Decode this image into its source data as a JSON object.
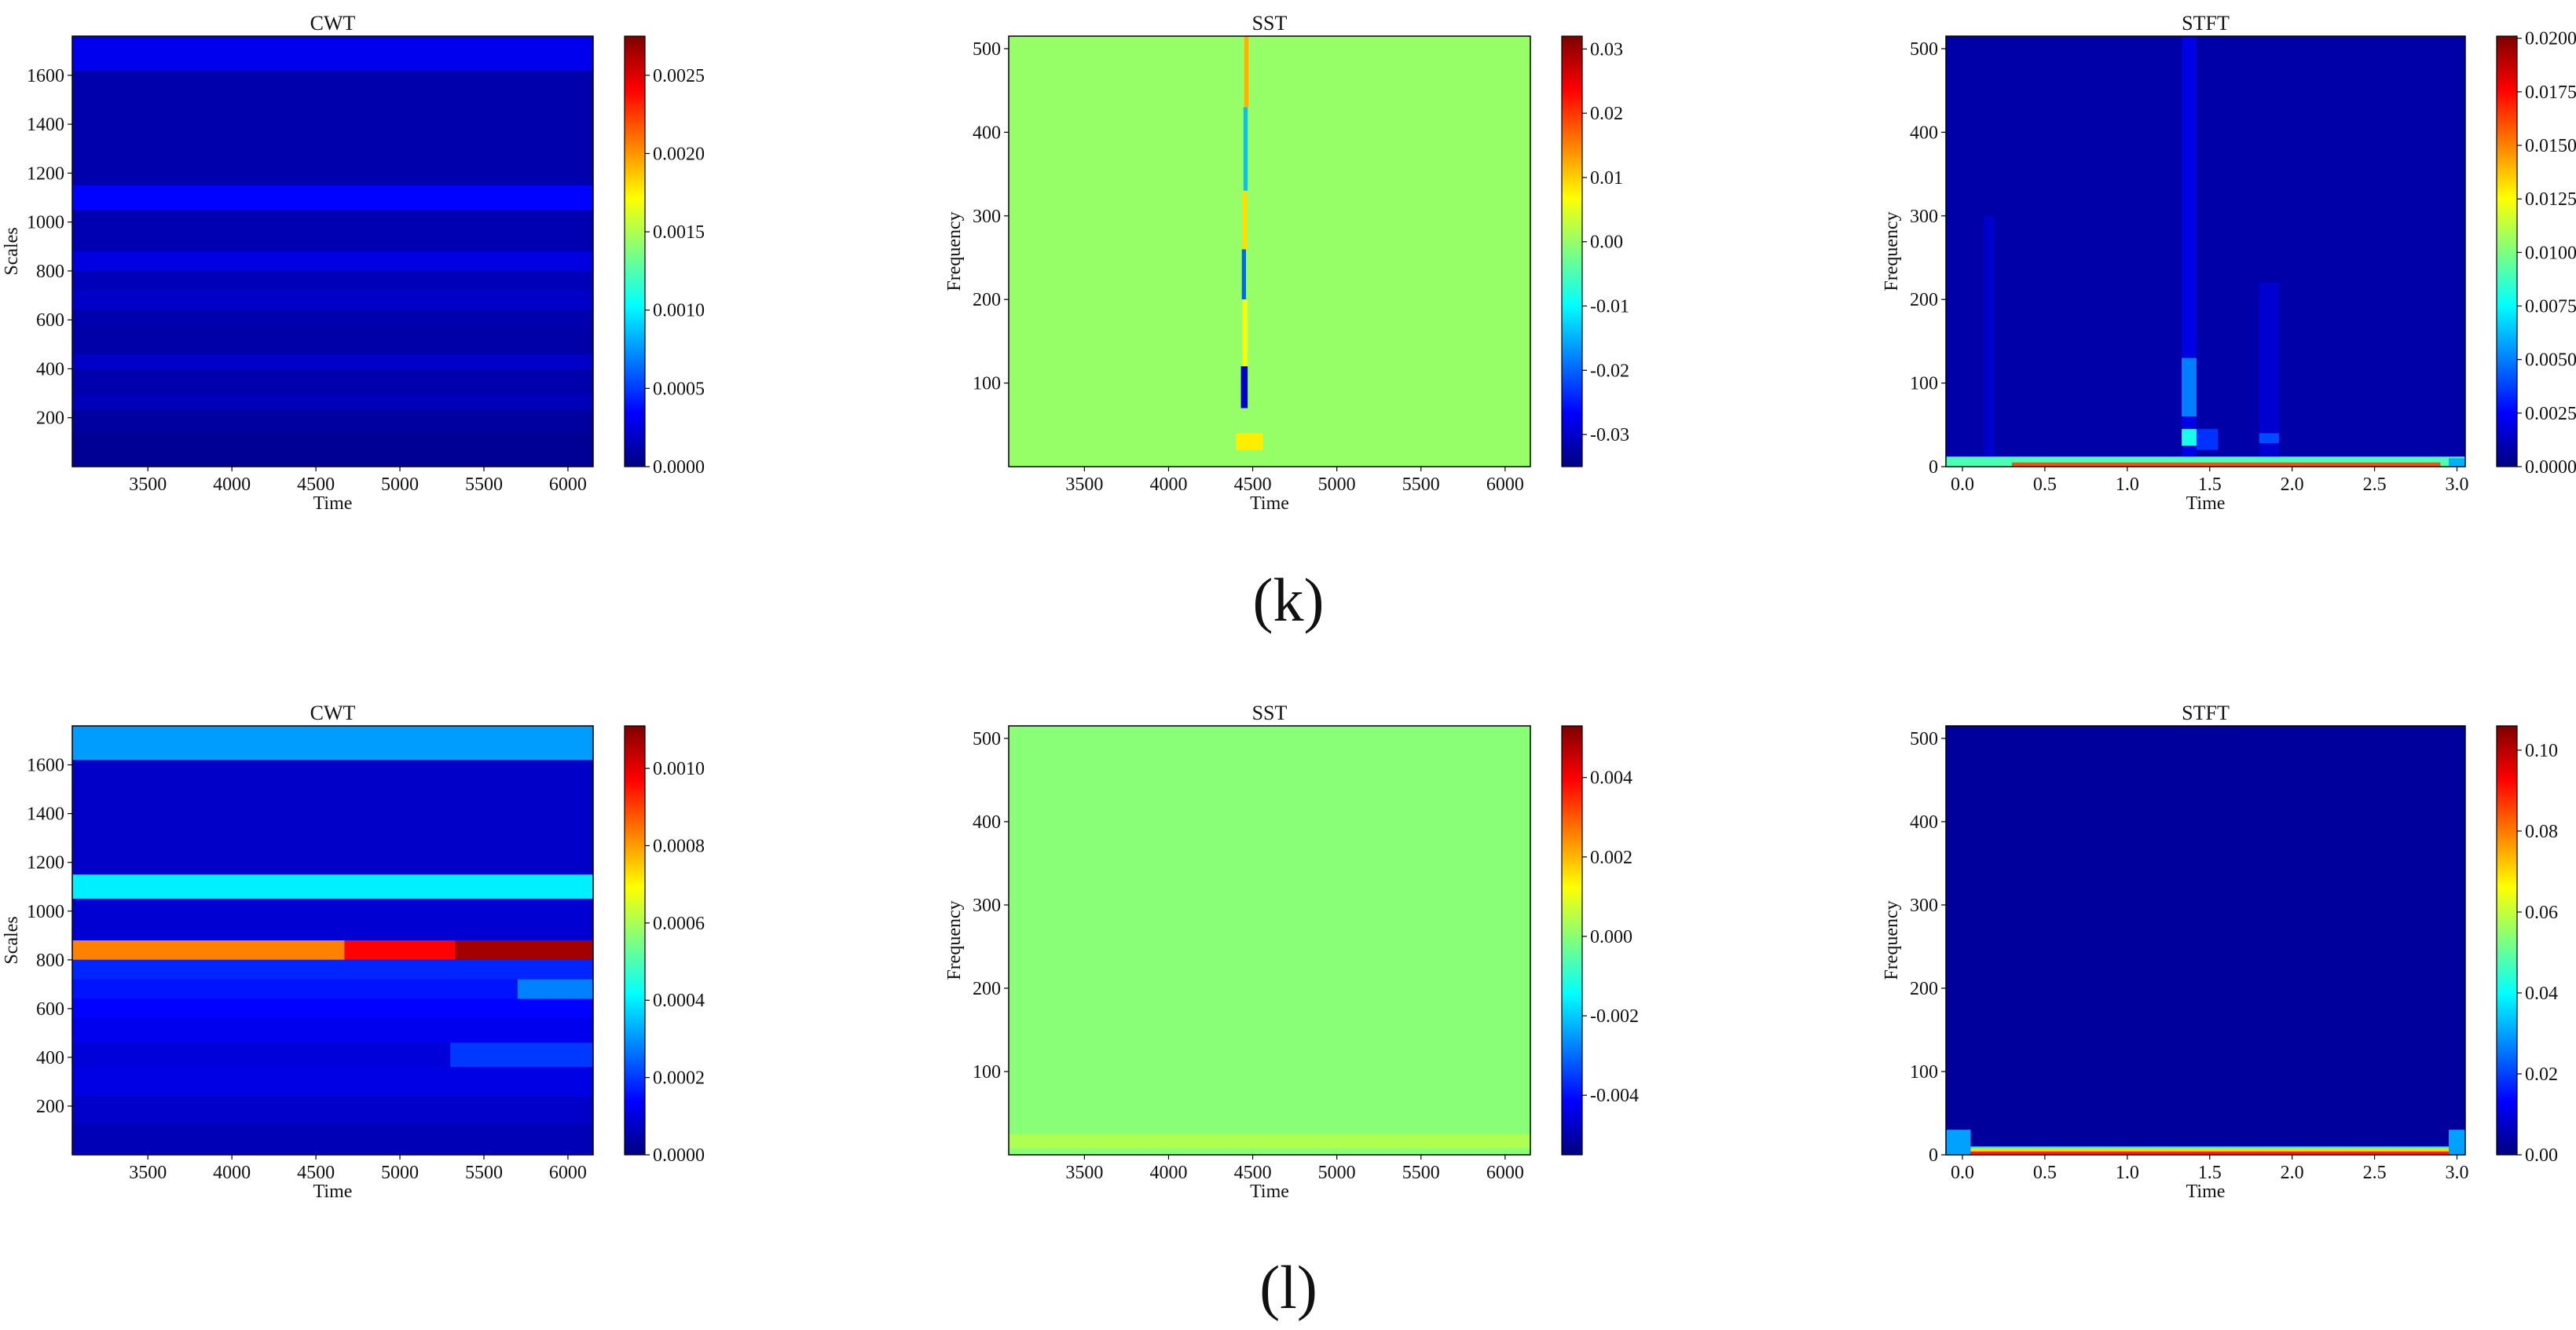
{
  "figure": {
    "rows": [
      {
        "label": "(k)",
        "panels": [
          {
            "title": "CWT",
            "xlabel": "Time",
            "ylabel": "Scales"
          },
          {
            "title": "SST",
            "xlabel": "Time",
            "ylabel": "Frequency"
          },
          {
            "title": "STFT",
            "xlabel": "Time",
            "ylabel": "Frequency"
          }
        ]
      },
      {
        "label": "(l)",
        "panels": [
          {
            "title": "CWT",
            "xlabel": "Time",
            "ylabel": "Scales"
          },
          {
            "title": "SST",
            "xlabel": "Time",
            "ylabel": "Frequency"
          },
          {
            "title": "STFT",
            "xlabel": "Time",
            "ylabel": "Frequency"
          }
        ]
      }
    ],
    "colormap": [
      "#00007f",
      "#0000ff",
      "#007fff",
      "#00ffff",
      "#7fff7f",
      "#ffff00",
      "#ff7f00",
      "#ff0000",
      "#7f0000"
    ]
  },
  "chart_data": [
    {
      "type": "heatmap",
      "title": "CWT",
      "xlabel": "Time",
      "ylabel": "Scales",
      "xlim": [
        3050,
        6150
      ],
      "ylim": [
        0,
        1760
      ],
      "xticks": [
        "3500",
        "4000",
        "4500",
        "5000",
        "5500",
        "6000"
      ],
      "xtick_values": [
        3500,
        4000,
        4500,
        5000,
        5500,
        6000
      ],
      "yticks": [
        "200",
        "400",
        "600",
        "800",
        "1000",
        "1200",
        "1400",
        "1600"
      ],
      "ytick_values": [
        200,
        400,
        600,
        800,
        1000,
        1200,
        1400,
        1600
      ],
      "colorbar": {
        "min": 0,
        "max": 0.00275,
        "ticks": [
          "0.0000",
          "0.0005",
          "0.0010",
          "0.0015",
          "0.0020",
          "0.0025"
        ],
        "tick_values": [
          0,
          0.0005,
          0.001,
          0.0015,
          0.002,
          0.0025
        ]
      },
      "bands": [
        {
          "y": [
            1620,
            1760
          ],
          "x": [
            3050,
            6150
          ],
          "value": 0.0003
        },
        {
          "y": [
            1150,
            1620
          ],
          "x": [
            3050,
            6150
          ],
          "value": 0.00012
        },
        {
          "y": [
            1050,
            1150
          ],
          "x": [
            3050,
            6150
          ],
          "value": 0.00035
        },
        {
          "y": [
            880,
            1050
          ],
          "x": [
            3050,
            6150
          ],
          "value": 0.00014
        },
        {
          "y": [
            800,
            880
          ],
          "x": [
            3050,
            6150
          ],
          "value": 0.00026
        },
        {
          "y": [
            720,
            800
          ],
          "x": [
            3050,
            6150
          ],
          "value": 0.00016
        },
        {
          "y": [
            640,
            720
          ],
          "x": [
            3050,
            6150
          ],
          "value": 0.0002
        },
        {
          "y": [
            560,
            640
          ],
          "x": [
            3050,
            6150
          ],
          "value": 0.00013
        },
        {
          "y": [
            460,
            560
          ],
          "x": [
            3050,
            6150
          ],
          "value": 0.00011
        },
        {
          "y": [
            400,
            460
          ],
          "x": [
            3050,
            6150
          ],
          "value": 0.0002
        },
        {
          "y": [
            300,
            400
          ],
          "x": [
            3050,
            6150
          ],
          "value": 0.00012
        },
        {
          "y": [
            230,
            300
          ],
          "x": [
            3050,
            6150
          ],
          "value": 0.00016
        },
        {
          "y": [
            140,
            230
          ],
          "x": [
            3050,
            6150
          ],
          "value": 9e-05
        },
        {
          "y": [
            0,
            140
          ],
          "x": [
            3050,
            6150
          ],
          "value": 6e-05
        }
      ]
    },
    {
      "type": "heatmap",
      "title": "SST",
      "xlabel": "Time",
      "ylabel": "Frequency",
      "xlim": [
        3050,
        6150
      ],
      "ylim": [
        0,
        515
      ],
      "xticks": [
        "3500",
        "4000",
        "4500",
        "5000",
        "5500",
        "6000"
      ],
      "xtick_values": [
        3500,
        4000,
        4500,
        5000,
        5500,
        6000
      ],
      "yticks": [
        "100",
        "200",
        "300",
        "400",
        "500"
      ],
      "ytick_values": [
        100,
        200,
        300,
        400,
        500
      ],
      "colorbar": {
        "min": -0.035,
        "max": 0.032,
        "ticks": [
          "-0.03",
          "-0.02",
          "-0.01",
          "0.00",
          "0.01",
          "0.02",
          "0.03"
        ],
        "tick_values": [
          -0.03,
          -0.02,
          -0.01,
          0,
          0.01,
          0.02,
          0.03
        ]
      },
      "background_value": 0.0,
      "bands": [
        {
          "y": [
            430,
            515
          ],
          "x": [
            4450,
            4475
          ],
          "value": 0.012
        },
        {
          "y": [
            330,
            430
          ],
          "x": [
            4445,
            4470
          ],
          "value": -0.014
        },
        {
          "y": [
            260,
            330
          ],
          "x": [
            4440,
            4465
          ],
          "value": 0.009
        },
        {
          "y": [
            200,
            260
          ],
          "x": [
            4435,
            4460
          ],
          "value": -0.02
        },
        {
          "y": [
            120,
            200
          ],
          "x": [
            4440,
            4470
          ],
          "value": 0.006
        },
        {
          "y": [
            70,
            120
          ],
          "x": [
            4430,
            4470
          ],
          "value": -0.03
        },
        {
          "y": [
            20,
            40
          ],
          "x": [
            4400,
            4560
          ],
          "value": 0.008
        }
      ]
    },
    {
      "type": "heatmap",
      "title": "STFT",
      "xlabel": "Time",
      "ylabel": "Frequency",
      "xlim": [
        -0.1,
        3.05
      ],
      "ylim": [
        0,
        515
      ],
      "xticks": [
        "0.0",
        "0.5",
        "1.0",
        "1.5",
        "2.0",
        "2.5",
        "3.0"
      ],
      "xtick_values": [
        0,
        0.5,
        1.0,
        1.5,
        2.0,
        2.5,
        3.0
      ],
      "yticks": [
        "0",
        "100",
        "200",
        "300",
        "400",
        "500"
      ],
      "ytick_values": [
        0,
        100,
        200,
        300,
        400,
        500
      ],
      "colorbar": {
        "min": 0,
        "max": 0.0201,
        "ticks": [
          "0.0000",
          "0.0025",
          "0.0050",
          "0.0075",
          "0.0100",
          "0.0125",
          "0.0150",
          "0.0175",
          "0.0200"
        ],
        "tick_values": [
          0,
          0.0025,
          0.005,
          0.0075,
          0.01,
          0.0125,
          0.015,
          0.0175,
          0.02
        ]
      },
      "background_value": 0.0008,
      "bands": [
        {
          "y": [
            0,
            515
          ],
          "x": [
            1.33,
            1.42
          ],
          "value": 0.002
        },
        {
          "y": [
            60,
            130
          ],
          "x": [
            1.33,
            1.42
          ],
          "value": 0.005
        },
        {
          "y": [
            25,
            45
          ],
          "x": [
            1.33,
            1.42
          ],
          "value": 0.008
        },
        {
          "y": [
            20,
            45
          ],
          "x": [
            1.42,
            1.55
          ],
          "value": 0.0035
        },
        {
          "y": [
            0,
            220
          ],
          "x": [
            1.8,
            1.92
          ],
          "value": 0.0016
        },
        {
          "y": [
            28,
            40
          ],
          "x": [
            1.8,
            1.92
          ],
          "value": 0.004
        },
        {
          "y": [
            0,
            300
          ],
          "x": [
            0.13,
            0.2
          ],
          "value": 0.0015
        },
        {
          "y": [
            0,
            12
          ],
          "x": [
            -0.1,
            3.05
          ],
          "value": 0.009
        },
        {
          "y": [
            0,
            5
          ],
          "x": [
            0.3,
            2.9
          ],
          "value": 0.016
        },
        {
          "y": [
            0,
            10
          ],
          "x": [
            2.95,
            3.05
          ],
          "value": 0.006
        }
      ]
    },
    {
      "type": "heatmap",
      "title": "CWT",
      "xlabel": "Time",
      "ylabel": "Scales",
      "xlim": [
        3050,
        6150
      ],
      "ylim": [
        0,
        1760
      ],
      "xticks": [
        "3500",
        "4000",
        "4500",
        "5000",
        "5500",
        "6000"
      ],
      "xtick_values": [
        3500,
        4000,
        4500,
        5000,
        5500,
        6000
      ],
      "yticks": [
        "200",
        "400",
        "600",
        "800",
        "1000",
        "1200",
        "1400",
        "1600"
      ],
      "ytick_values": [
        200,
        400,
        600,
        800,
        1000,
        1200,
        1400,
        1600
      ],
      "colorbar": {
        "min": 0,
        "max": 0.00111,
        "ticks": [
          "0.0000",
          "0.0002",
          "0.0004",
          "0.0006",
          "0.0008",
          "0.0010"
        ],
        "tick_values": [
          0,
          0.0002,
          0.0004,
          0.0006,
          0.0008,
          0.001
        ]
      },
      "bands": [
        {
          "y": [
            1620,
            1760
          ],
          "x": [
            3050,
            6150
          ],
          "value": 0.00031
        },
        {
          "y": [
            1150,
            1620
          ],
          "x": [
            3050,
            6150
          ],
          "value": 8e-05
        },
        {
          "y": [
            1050,
            1150
          ],
          "x": [
            3050,
            6150
          ],
          "value": 0.0004
        },
        {
          "y": [
            880,
            1050
          ],
          "x": [
            3050,
            6150
          ],
          "value": 9e-05
        },
        {
          "y": [
            800,
            880
          ],
          "x": [
            3050,
            4670
          ],
          "value": 0.00083
        },
        {
          "y": [
            800,
            880
          ],
          "x": [
            4670,
            5330
          ],
          "value": 0.00097
        },
        {
          "y": [
            800,
            880
          ],
          "x": [
            5330,
            6150
          ],
          "value": 0.00107
        },
        {
          "y": [
            720,
            800
          ],
          "x": [
            3050,
            6150
          ],
          "value": 0.00018
        },
        {
          "y": [
            640,
            720
          ],
          "x": [
            3050,
            5700
          ],
          "value": 0.00016
        },
        {
          "y": [
            640,
            720
          ],
          "x": [
            5700,
            6150
          ],
          "value": 0.00028
        },
        {
          "y": [
            560,
            640
          ],
          "x": [
            3050,
            6150
          ],
          "value": 0.00014
        },
        {
          "y": [
            460,
            560
          ],
          "x": [
            3050,
            6150
          ],
          "value": 0.00012
        },
        {
          "y": [
            360,
            460
          ],
          "x": [
            3050,
            5300
          ],
          "value": 0.0001
        },
        {
          "y": [
            360,
            460
          ],
          "x": [
            5300,
            6150
          ],
          "value": 0.0002
        },
        {
          "y": [
            240,
            360
          ],
          "x": [
            3050,
            6150
          ],
          "value": 0.00011
        },
        {
          "y": [
            130,
            240
          ],
          "x": [
            3050,
            6150
          ],
          "value": 8e-05
        },
        {
          "y": [
            0,
            130
          ],
          "x": [
            3050,
            6150
          ],
          "value": 6e-05
        }
      ]
    },
    {
      "type": "heatmap",
      "title": "SST",
      "xlabel": "Time",
      "ylabel": "Frequency",
      "xlim": [
        3050,
        6150
      ],
      "ylim": [
        0,
        515
      ],
      "xticks": [
        "3500",
        "4000",
        "4500",
        "5000",
        "5500",
        "6000"
      ],
      "xtick_values": [
        3500,
        4000,
        4500,
        5000,
        5500,
        6000
      ],
      "yticks": [
        "100",
        "200",
        "300",
        "400",
        "500"
      ],
      "ytick_values": [
        100,
        200,
        300,
        400,
        500
      ],
      "colorbar": {
        "min": -0.0055,
        "max": 0.0053,
        "ticks": [
          "-0.004",
          "-0.002",
          "0.000",
          "0.002",
          "0.004"
        ],
        "tick_values": [
          -0.004,
          -0.002,
          0,
          0.002,
          0.004
        ]
      },
      "background_value": 0.0,
      "bands": [
        {
          "y": [
            8,
            25
          ],
          "x": [
            3050,
            6150
          ],
          "value": 0.0004
        }
      ]
    },
    {
      "type": "heatmap",
      "title": "STFT",
      "xlabel": "Time",
      "ylabel": "Frequency",
      "xlim": [
        -0.1,
        3.05
      ],
      "ylim": [
        0,
        515
      ],
      "xticks": [
        "0.0",
        "0.5",
        "1.0",
        "1.5",
        "2.0",
        "2.5",
        "3.0"
      ],
      "xtick_values": [
        0,
        0.5,
        1.0,
        1.5,
        2.0,
        2.5,
        3.0
      ],
      "yticks": [
        "0",
        "100",
        "200",
        "300",
        "400",
        "500"
      ],
      "ytick_values": [
        0,
        100,
        200,
        300,
        400,
        500
      ],
      "colorbar": {
        "min": 0,
        "max": 0.106,
        "ticks": [
          "0.00",
          "0.02",
          "0.04",
          "0.06",
          "0.08",
          "0.10"
        ],
        "tick_values": [
          0,
          0.02,
          0.04,
          0.06,
          0.08,
          0.1
        ]
      },
      "background_value": 0.003,
      "bands": [
        {
          "y": [
            0,
            10
          ],
          "x": [
            -0.1,
            3.05
          ],
          "value": 0.04
        },
        {
          "y": [
            3,
            8
          ],
          "x": [
            0.05,
            2.95
          ],
          "value": 0.07
        },
        {
          "y": [
            0,
            4
          ],
          "x": [
            0.05,
            2.95
          ],
          "value": 0.09
        },
        {
          "y": [
            0,
            30
          ],
          "x": [
            -0.1,
            0.05
          ],
          "value": 0.03
        },
        {
          "y": [
            0,
            30
          ],
          "x": [
            2.95,
            3.05
          ],
          "value": 0.03
        }
      ]
    }
  ]
}
